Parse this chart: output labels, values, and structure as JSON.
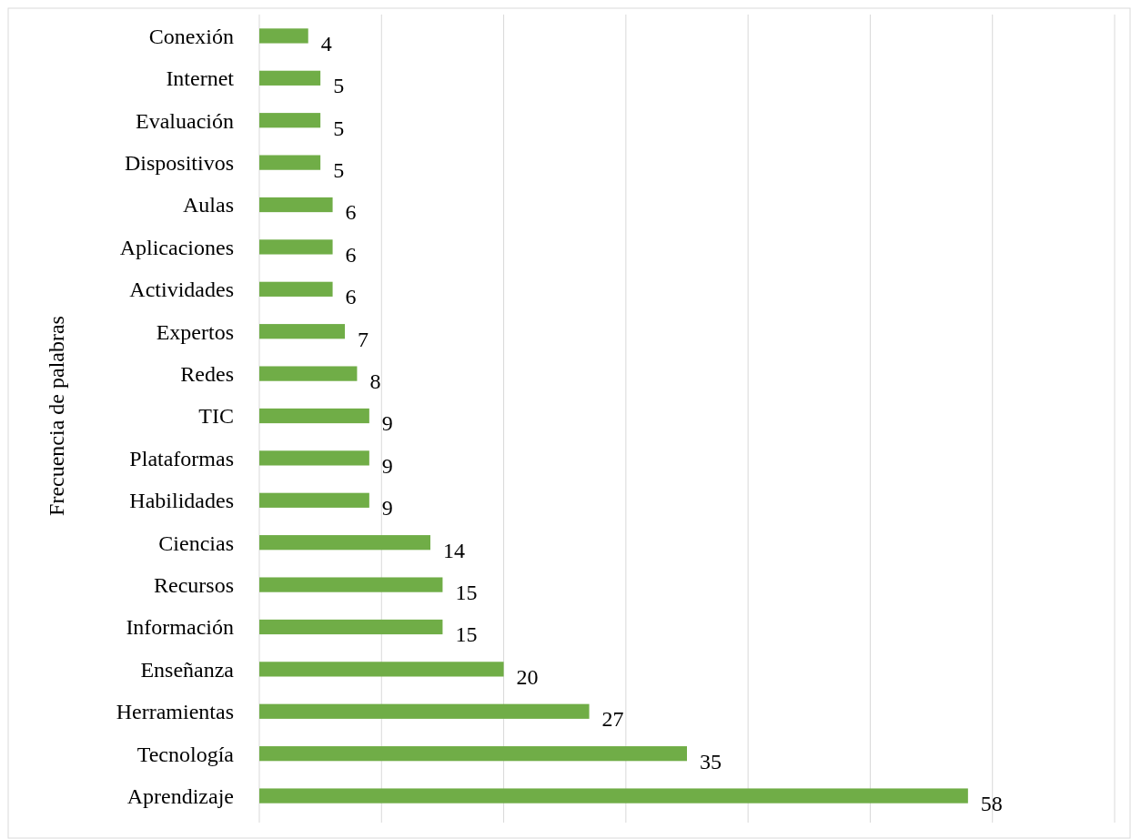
{
  "chart_data": {
    "type": "bar",
    "orientation": "horizontal",
    "ylabel": "Frecuencia de palabras",
    "categories": [
      "Conexión",
      "Internet",
      "Evaluación",
      "Dispositivos",
      "Aulas",
      "Aplicaciones",
      "Actividades",
      "Expertos",
      "Redes",
      "TIC",
      "Plataformas",
      "Habilidades",
      "Ciencias",
      "Recursos",
      "Información",
      "Enseñanza",
      "Herramientas",
      "Tecnología",
      "Aprendizaje"
    ],
    "values": [
      4,
      5,
      5,
      5,
      6,
      6,
      6,
      7,
      8,
      9,
      9,
      9,
      14,
      15,
      15,
      20,
      27,
      35,
      58
    ],
    "color": "#70ad47",
    "xlim": [
      0,
      70
    ],
    "xticks": [
      {
        "value": 0,
        "label": null
      },
      {
        "value": 10,
        "label": null
      },
      {
        "value": 20,
        "label": null
      },
      {
        "value": 30,
        "label": null
      },
      {
        "value": 40,
        "label": null
      },
      {
        "value": 50,
        "label": null
      },
      {
        "value": 60,
        "label": null
      },
      {
        "value": 70,
        "label": null
      }
    ],
    "grid": "x",
    "data_labels": true
  }
}
